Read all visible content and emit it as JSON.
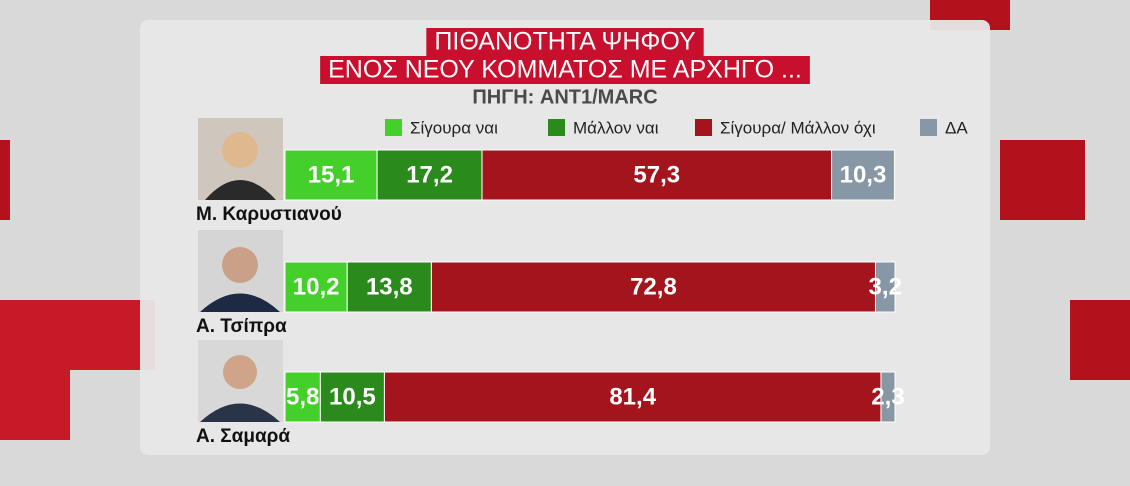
{
  "chart_data": {
    "type": "stacked-bar-horizontal",
    "title": [
      "ΠΙΘΑΝΟΤΗΤΑ ΨΗΦΟΥ",
      "ΕΝΟΣ ΝΕΟΥ ΚΟΜΜΑΤΟΣ ΜΕ ΑΡΧΗΓΟ ..."
    ],
    "source": "ΠΗΓΗ: ANT1/MARC",
    "categories": [
      "Μ. Καρυστιανού",
      "Α. Τσίπρα",
      "Α. Σαμαρά"
    ],
    "series": [
      {
        "name": "Σίγουρα ναι",
        "color": "#45cf2b",
        "values": [
          15.1,
          10.2,
          5.8
        ],
        "value_labels": [
          "15,1",
          "10,2",
          "5,8"
        ]
      },
      {
        "name": "Μάλλον ναι",
        "color": "#2b8a1c",
        "values": [
          17.2,
          13.8,
          10.5
        ],
        "value_labels": [
          "17,2",
          "13,8",
          "10,5"
        ]
      },
      {
        "name": "Σίγουρα/ Μάλλον όχι",
        "color": "#a3141d",
        "values": [
          57.3,
          72.8,
          81.4
        ],
        "value_labels": [
          "57,3",
          "72,8",
          "81,4"
        ]
      },
      {
        "name": "ΔΑ",
        "color": "#8797a6",
        "values": [
          10.3,
          3.2,
          2.3
        ],
        "value_labels": [
          "10,3",
          "3,2",
          "2,3"
        ]
      }
    ]
  }
}
